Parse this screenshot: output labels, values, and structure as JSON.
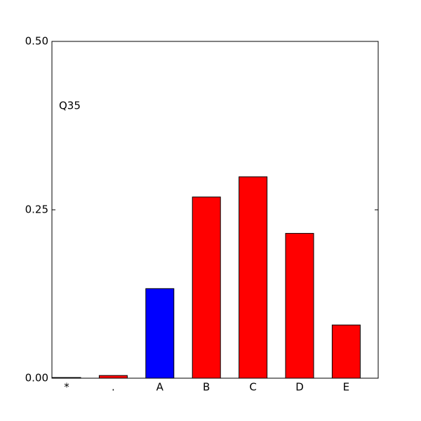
{
  "chart_data": {
    "type": "bar",
    "annotation": "Q35",
    "categories": [
      "*",
      ".",
      "A",
      "B",
      "C",
      "D",
      "E"
    ],
    "values": [
      0.001,
      0.004,
      0.133,
      0.269,
      0.299,
      0.215,
      0.079
    ],
    "colors": [
      "#ff0000",
      "#ff0000",
      "#0000ff",
      "#ff0000",
      "#ff0000",
      "#ff0000",
      "#ff0000"
    ],
    "ylim": [
      0,
      0.5
    ],
    "yticks": [
      {
        "value": 0,
        "label": "0.00"
      },
      {
        "value": 0.25,
        "label": "0.25"
      },
      {
        "value": 0.5,
        "label": "0.50"
      }
    ],
    "grid": false
  }
}
